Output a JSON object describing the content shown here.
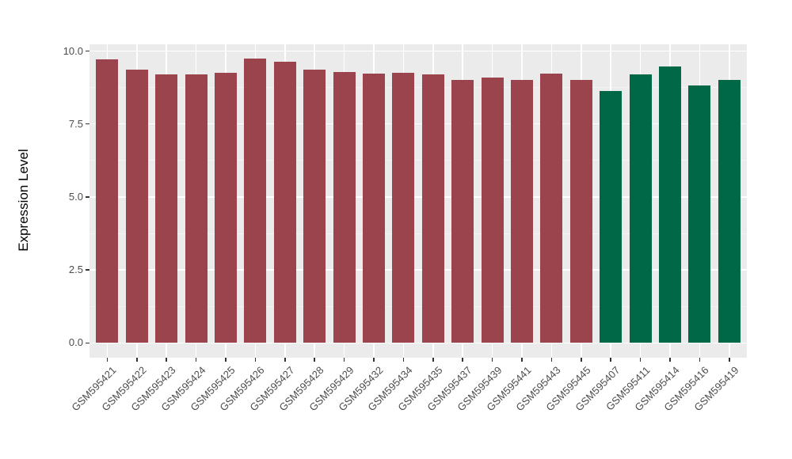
{
  "chart_data": {
    "type": "bar",
    "title": "",
    "xlabel": "",
    "ylabel": "Expression Level",
    "ylim": [
      0,
      10.25
    ],
    "grid": true,
    "legend": "none",
    "panel_background": "#EBEBEB",
    "gridline_color": "#ffffff",
    "yticks": [
      0.0,
      2.5,
      5.0,
      7.5,
      10.0
    ],
    "ytick_labels": [
      "0.0",
      "2.5",
      "5.0",
      "7.5",
      "10.0"
    ],
    "minor_yticks": [
      1.25,
      3.75,
      6.25,
      8.75
    ],
    "categories": [
      "GSM595421",
      "GSM595422",
      "GSM595423",
      "GSM595424",
      "GSM595425",
      "GSM595426",
      "GSM595427",
      "GSM595428",
      "GSM595429",
      "GSM595432",
      "GSM595434",
      "GSM595435",
      "GSM595437",
      "GSM595439",
      "GSM595441",
      "GSM595443",
      "GSM595445",
      "GSM595407",
      "GSM595411",
      "GSM595414",
      "GSM595416",
      "GSM595419"
    ],
    "values": [
      9.72,
      9.36,
      9.19,
      9.19,
      9.26,
      9.74,
      9.63,
      9.35,
      9.28,
      9.22,
      9.26,
      9.2,
      9.01,
      9.08,
      9.02,
      9.24,
      9.01,
      8.63,
      9.2,
      9.46,
      8.82,
      9.01
    ],
    "colors": [
      "#9B444E",
      "#9B444E",
      "#9B444E",
      "#9B444E",
      "#9B444E",
      "#9B444E",
      "#9B444E",
      "#9B444E",
      "#9B444E",
      "#9B444E",
      "#9B444E",
      "#9B444E",
      "#9B444E",
      "#9B444E",
      "#9B444E",
      "#9B444E",
      "#9B444E",
      "#006847",
      "#006847",
      "#006847",
      "#006847",
      "#006847"
    ],
    "group_colors": {
      "group1_maroon": "#9B444E",
      "group2_green": "#006847"
    }
  }
}
